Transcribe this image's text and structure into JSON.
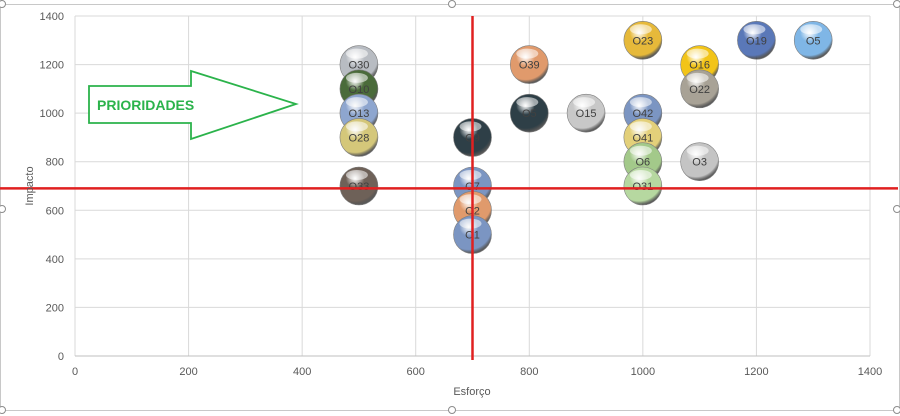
{
  "chart_data": {
    "type": "scatter",
    "xlabel": "Esforço",
    "ylabel": "Impacto",
    "xlim": [
      0,
      1400
    ],
    "ylim": [
      0,
      1400
    ],
    "x_ticks": [
      0,
      200,
      400,
      600,
      800,
      1000,
      1200,
      1400
    ],
    "y_ticks": [
      0,
      200,
      400,
      600,
      800,
      1000,
      1200,
      1400
    ],
    "grid": true,
    "reference_lines": {
      "x": 700,
      "y": 690,
      "color": "#e02020"
    },
    "annotation": {
      "text": "PRIORIDADES",
      "shape": "right-arrow",
      "color": "#2bb34b"
    },
    "points": [
      {
        "label": "O30",
        "x": 500,
        "y": 1200,
        "color": "#b8bcc2"
      },
      {
        "label": "O10",
        "x": 500,
        "y": 1100,
        "color": "#4a6b3a"
      },
      {
        "label": "O13",
        "x": 500,
        "y": 1000,
        "color": "#8ea6cf"
      },
      {
        "label": "O28",
        "x": 500,
        "y": 900,
        "color": "#d4c77a"
      },
      {
        "label": "O33",
        "x": 500,
        "y": 700,
        "color": "#6e6158"
      },
      {
        "label": "O9",
        "x": 700,
        "y": 900,
        "color": "#2e3f47"
      },
      {
        "label": "O7",
        "x": 700,
        "y": 700,
        "color": "#7b95c2"
      },
      {
        "label": "O2",
        "x": 700,
        "y": 600,
        "color": "#e09a6c"
      },
      {
        "label": "O1",
        "x": 700,
        "y": 500,
        "color": "#7b95c2"
      },
      {
        "label": "O39",
        "x": 800,
        "y": 1200,
        "color": "#e09a6c"
      },
      {
        "label": "O5",
        "x": 800,
        "y": 1000,
        "color": "#2e3f47"
      },
      {
        "label": "O15",
        "x": 900,
        "y": 1000,
        "color": "#c8c8c8"
      },
      {
        "label": "O23",
        "x": 1000,
        "y": 1300,
        "color": "#e6b93a"
      },
      {
        "label": "O42",
        "x": 1000,
        "y": 1000,
        "color": "#7b95c2"
      },
      {
        "label": "O41",
        "x": 1000,
        "y": 900,
        "color": "#e3d07a"
      },
      {
        "label": "O6",
        "x": 1000,
        "y": 800,
        "color": "#a3c98a"
      },
      {
        "label": "O31",
        "x": 1000,
        "y": 700,
        "color": "#b6d8a0"
      },
      {
        "label": "O16",
        "x": 1100,
        "y": 1200,
        "color": "#f2c418"
      },
      {
        "label": "O22",
        "x": 1100,
        "y": 1100,
        "color": "#a8a296"
      },
      {
        "label": "O3",
        "x": 1100,
        "y": 800,
        "color": "#c4c4c4"
      },
      {
        "label": "O19",
        "x": 1200,
        "y": 1300,
        "color": "#5a78b8"
      },
      {
        "label": "O5",
        "x": 1300,
        "y": 1300,
        "color": "#7fb6e6"
      }
    ]
  }
}
